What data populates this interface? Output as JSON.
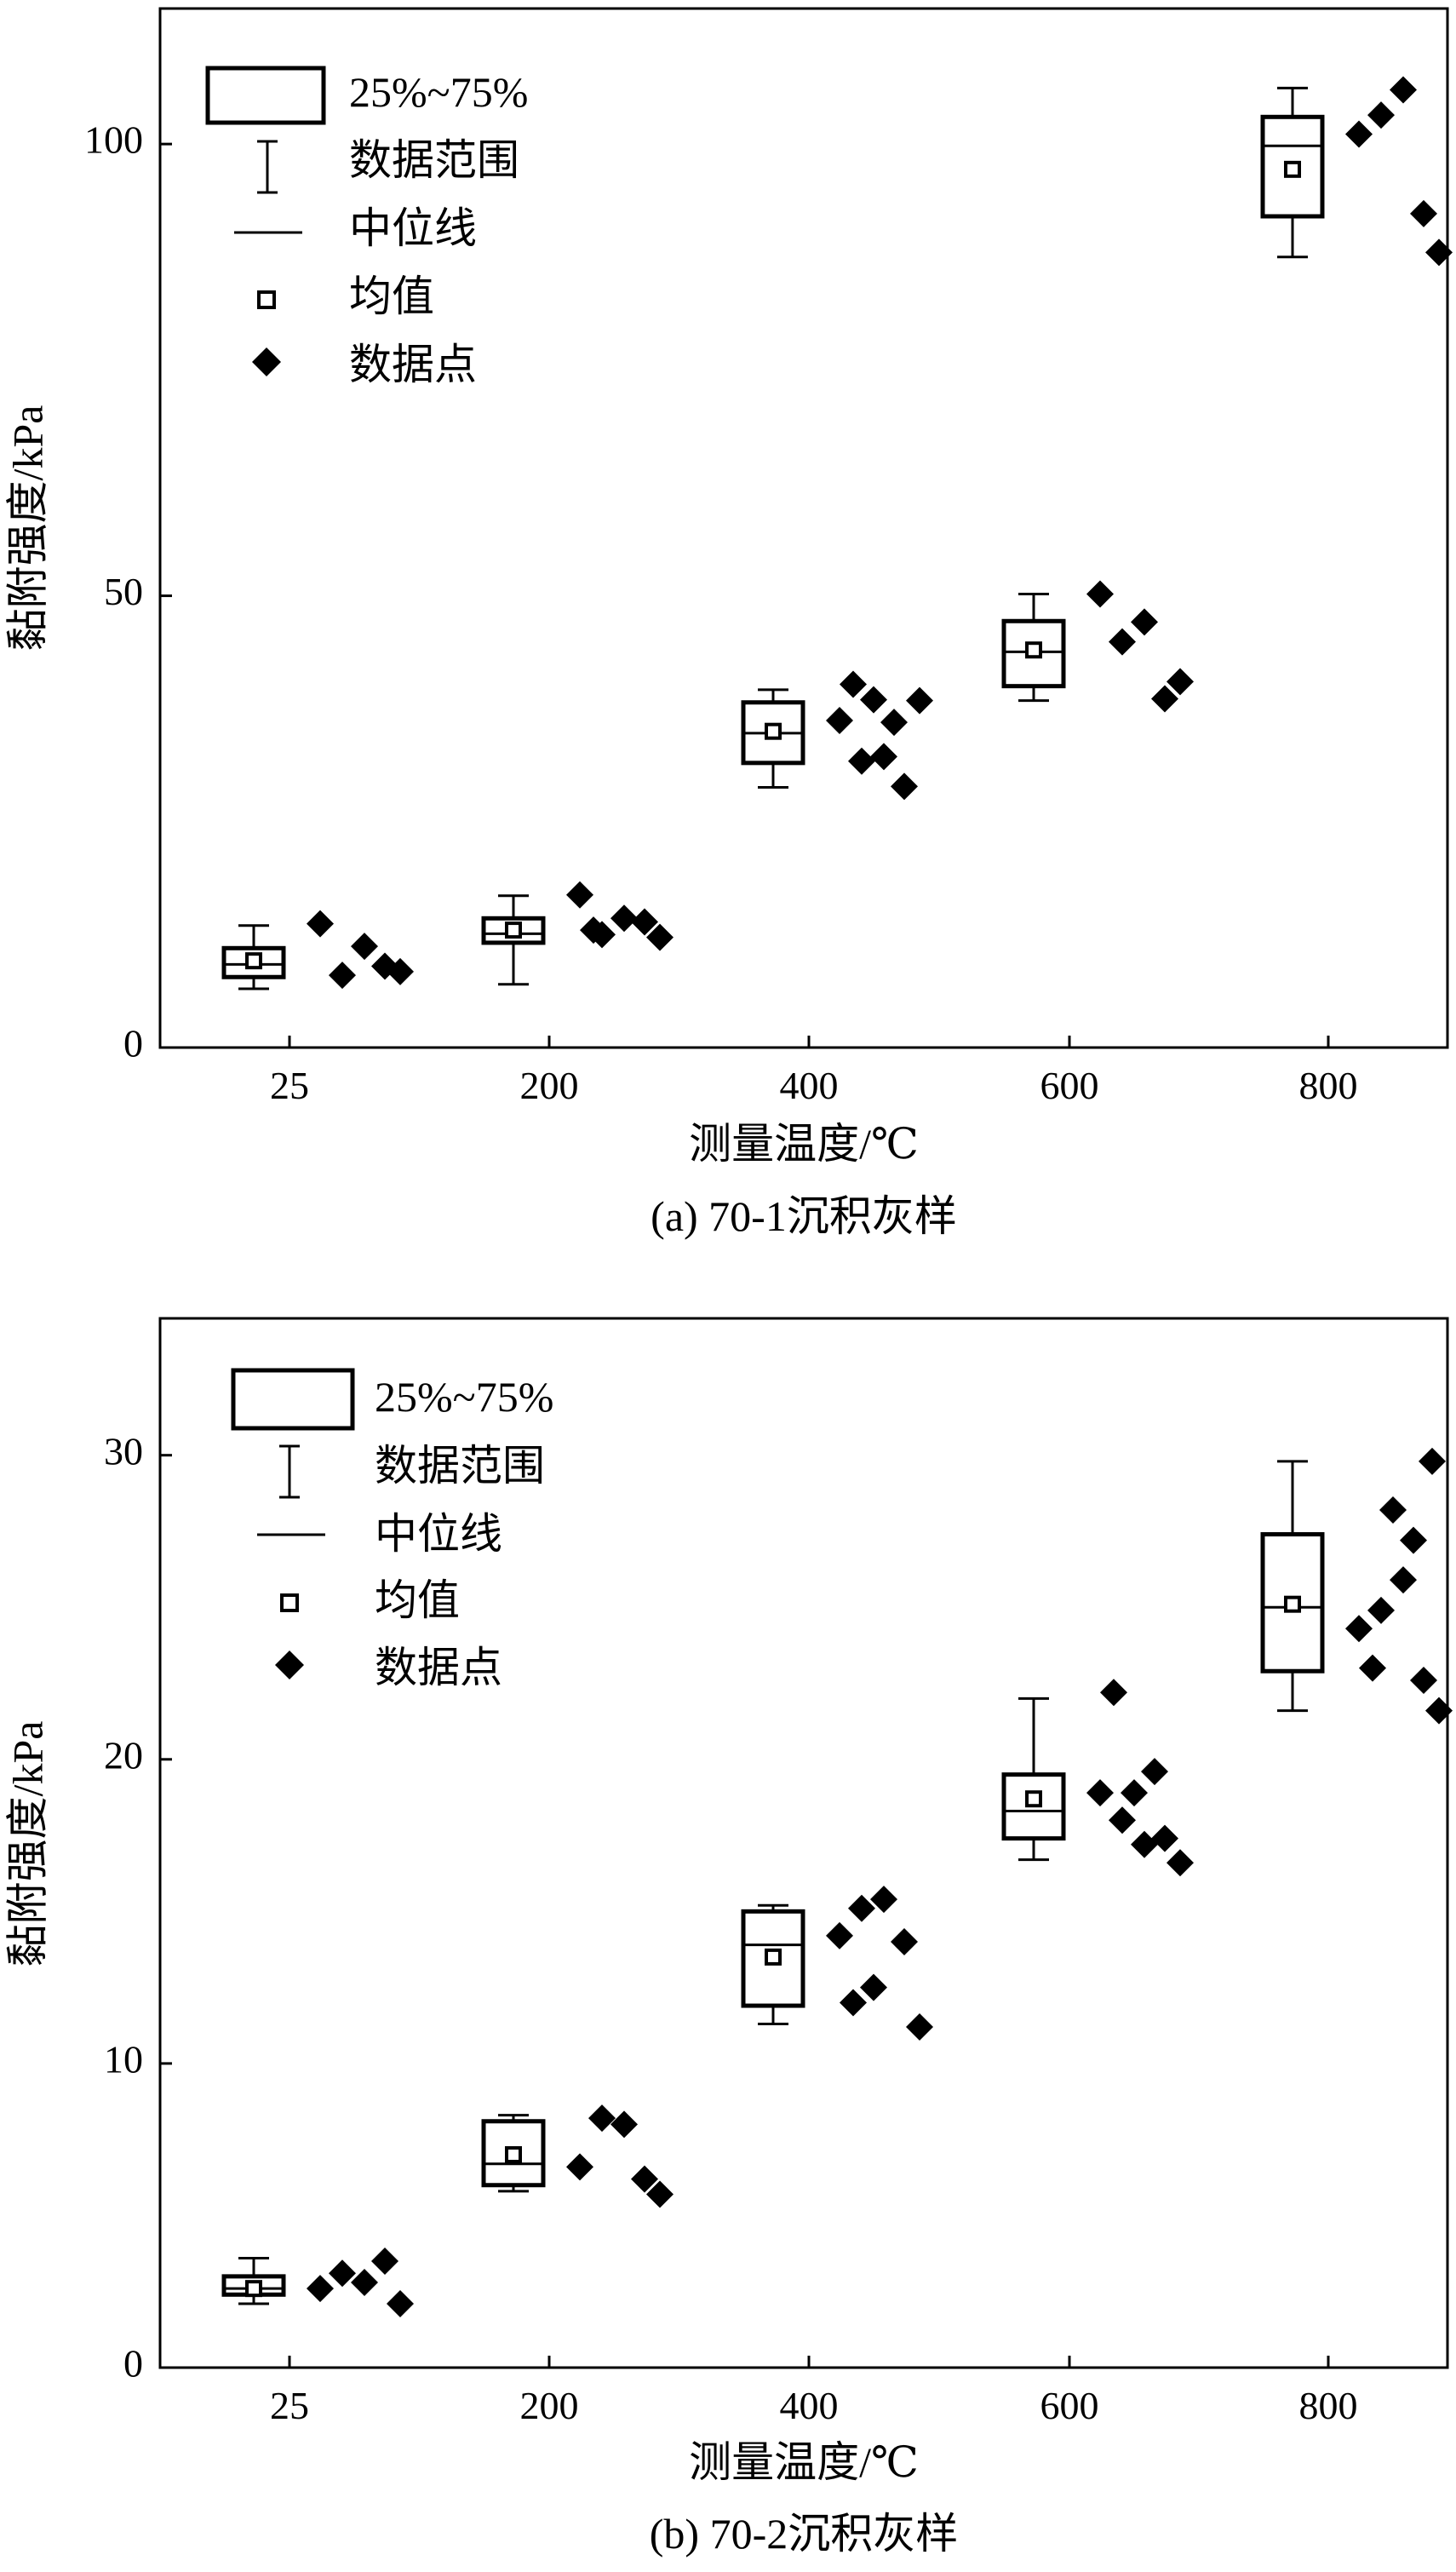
{
  "legend": {
    "box": "25%~75%",
    "range": "数据范围",
    "median": "中位线",
    "mean": "均值",
    "points": "数据点"
  },
  "chart_data": [
    {
      "type": "box",
      "caption": "(a) 70-1沉积灰样",
      "xlabel": "测量温度/℃",
      "ylabel": "黏附强度/kPa",
      "categories": [
        "25",
        "200",
        "400",
        "600",
        "800"
      ],
      "ylim": [
        0,
        115
      ],
      "yticks": [
        0,
        50,
        100
      ],
      "legend_position": "top-left",
      "boxes": [
        {
          "min": 6.5,
          "q1": 7.8,
          "median": 9.2,
          "q3": 11.0,
          "max": 13.5,
          "mean": 9.6
        },
        {
          "min": 7.0,
          "q1": 11.6,
          "median": 12.6,
          "q3": 14.3,
          "max": 16.8,
          "mean": 13.0
        },
        {
          "min": 28.8,
          "q1": 31.5,
          "median": 34.8,
          "q3": 38.2,
          "max": 39.6,
          "mean": 35.0
        },
        {
          "min": 38.4,
          "q1": 40.0,
          "median": 43.8,
          "q3": 47.2,
          "max": 50.2,
          "mean": 44.0
        },
        {
          "min": 87.5,
          "q1": 92.0,
          "median": 99.8,
          "q3": 103.0,
          "max": 106.2,
          "mean": 97.2
        }
      ],
      "points": [
        [
          13.7,
          8.0,
          11.2,
          9.0,
          8.4
        ],
        [
          16.9,
          12.5,
          14.3,
          13.9,
          12.2,
          13.0
        ],
        [
          36.2,
          31.7,
          32.2,
          28.9,
          38.4,
          40.2,
          38.5,
          36.0
        ],
        [
          50.2,
          44.9,
          47.1,
          38.6,
          40.5
        ],
        [
          101.1,
          103.2,
          106.0,
          92.3,
          88.0
        ]
      ]
    },
    {
      "type": "box",
      "caption": "(b) 70-2沉积灰样",
      "xlabel": "测量温度/℃",
      "ylabel": "黏附强度/kPa",
      "categories": [
        "25",
        "200",
        "400",
        "600",
        "800"
      ],
      "ylim": [
        0,
        34.5
      ],
      "yticks": [
        0,
        10,
        20,
        30
      ],
      "legend_position": "top-left",
      "boxes": [
        {
          "min": 2.1,
          "q1": 2.4,
          "median": 2.6,
          "q3": 3.0,
          "max": 3.6,
          "mean": 2.6
        },
        {
          "min": 5.8,
          "q1": 6.0,
          "median": 6.7,
          "q3": 8.1,
          "max": 8.3,
          "mean": 7.0
        },
        {
          "min": 11.3,
          "q1": 11.9,
          "median": 13.9,
          "q3": 15.0,
          "max": 15.2,
          "mean": 13.5
        },
        {
          "min": 16.7,
          "q1": 17.4,
          "median": 18.3,
          "q3": 19.5,
          "max": 22.0,
          "mean": 18.7
        },
        {
          "min": 21.6,
          "q1": 22.9,
          "median": 25.0,
          "q3": 27.4,
          "max": 29.8,
          "mean": 25.1
        }
      ],
      "points": [
        [
          2.6,
          3.1,
          2.8,
          3.5,
          2.1
        ],
        [
          6.6,
          8.2,
          8.0,
          6.2,
          5.7
        ],
        [
          14.2,
          15.1,
          15.4,
          14.0,
          11.2,
          12.0,
          12.5
        ],
        [
          18.9,
          18.0,
          17.2,
          17.4,
          16.6,
          22.2,
          18.9,
          19.6
        ],
        [
          24.3,
          24.9,
          25.9,
          22.6,
          21.6,
          23.0,
          28.2,
          27.2,
          29.8
        ]
      ]
    }
  ]
}
